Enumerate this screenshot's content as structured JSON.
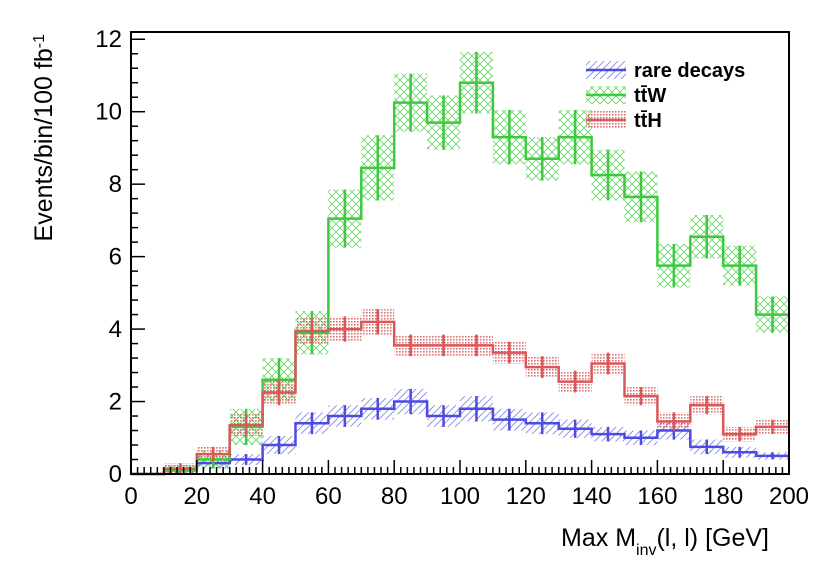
{
  "chart_data": {
    "type": "histogram",
    "title": "",
    "xlabel": {
      "main": "Max M",
      "sub": "inv",
      "rest": "(l, l) [GeV]"
    },
    "ylabel": {
      "main": "Events/bin/100 fb",
      "sup": "-1"
    },
    "xlim": [
      0,
      200
    ],
    "ylim": [
      0,
      12.2
    ],
    "xticks": [
      0,
      20,
      40,
      60,
      80,
      100,
      120,
      140,
      160,
      180,
      200
    ],
    "yticks": [
      0,
      2,
      4,
      6,
      8,
      10,
      12
    ],
    "bin_edges": [
      0,
      10,
      20,
      30,
      40,
      50,
      60,
      70,
      80,
      90,
      100,
      110,
      120,
      130,
      140,
      150,
      160,
      170,
      180,
      190,
      200
    ],
    "grid": false,
    "legend_position": "top-right",
    "series": [
      {
        "name": "rare decays",
        "color": "#4c4ce0",
        "hatch": "diagonal",
        "values": [
          0,
          0.1,
          0.3,
          0.4,
          0.8,
          1.4,
          1.6,
          1.8,
          2.0,
          1.6,
          1.8,
          1.5,
          1.4,
          1.25,
          1.1,
          1.0,
          1.2,
          0.75,
          0.6,
          0.5
        ],
        "errors": [
          0,
          0.1,
          0.15,
          0.15,
          0.25,
          0.3,
          0.3,
          0.3,
          0.35,
          0.3,
          0.35,
          0.3,
          0.3,
          0.25,
          0.2,
          0.2,
          0.25,
          0.2,
          0.15,
          0.1
        ]
      },
      {
        "name": "tt̄W",
        "color": "#3ec93e",
        "hatch": "crosshatch",
        "values": [
          0,
          0.1,
          0.4,
          1.3,
          2.6,
          3.9,
          7.05,
          8.45,
          10.25,
          9.7,
          10.8,
          9.3,
          8.7,
          9.3,
          8.25,
          7.65,
          5.75,
          6.55,
          5.75,
          4.4
        ],
        "errors": [
          0,
          0.15,
          0.25,
          0.5,
          0.6,
          0.6,
          0.8,
          0.9,
          0.8,
          0.75,
          0.85,
          0.75,
          0.6,
          0.75,
          0.7,
          0.7,
          0.6,
          0.6,
          0.55,
          0.5
        ]
      },
      {
        "name": "tt̄H",
        "color": "#d9585a",
        "hatch": "dots",
        "values": [
          0,
          0.15,
          0.55,
          1.35,
          2.25,
          3.95,
          4.0,
          4.2,
          3.55,
          3.55,
          3.55,
          3.35,
          2.95,
          2.55,
          3.05,
          2.15,
          1.45,
          1.9,
          1.1,
          1.3
        ],
        "errors": [
          0,
          0.15,
          0.2,
          0.3,
          0.35,
          0.35,
          0.35,
          0.35,
          0.3,
          0.3,
          0.3,
          0.3,
          0.3,
          0.3,
          0.3,
          0.25,
          0.25,
          0.25,
          0.2,
          0.2
        ]
      }
    ]
  }
}
